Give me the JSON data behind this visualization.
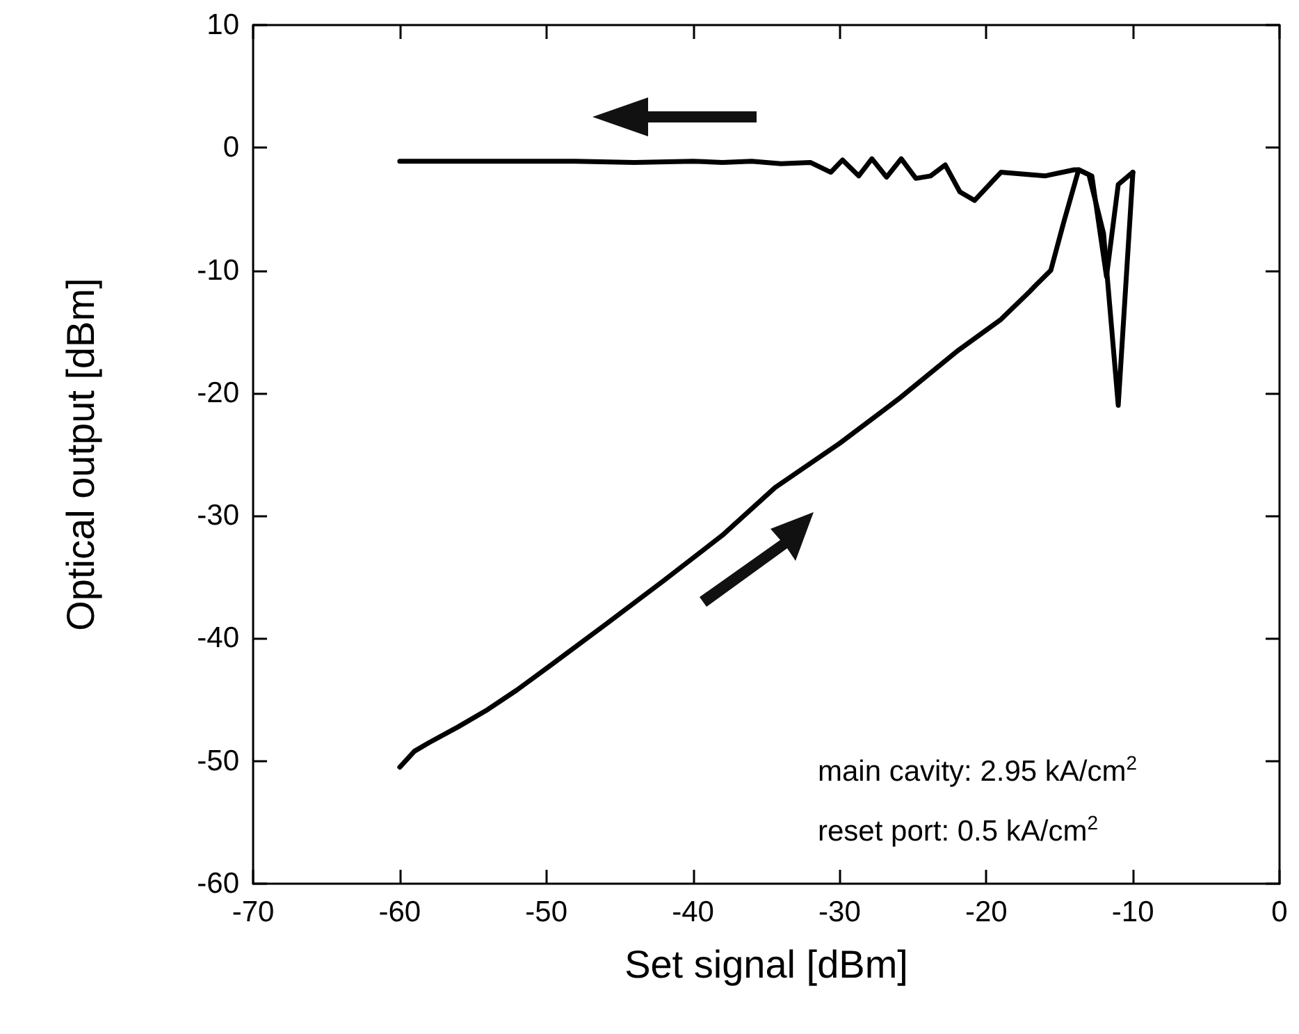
{
  "chart_data": {
    "type": "line",
    "xlabel": "Set signal [dBm]",
    "ylabel": "Optical output [dBm]",
    "xlim": [
      -70,
      0
    ],
    "xticks": [
      -70,
      -60,
      -50,
      -40,
      -30,
      -20,
      -10,
      0
    ],
    "ylim": [
      -60,
      10
    ],
    "yticks": [
      -60,
      -50,
      -40,
      -30,
      -20,
      -10,
      0,
      10
    ],
    "grid": false,
    "marker": "none",
    "line_style": "solid",
    "annotations": [
      "main cavity: 2.95 kA/cm$^{2}$",
      "reset port: 0.5 kA/cm$^{2}$"
    ],
    "series": [
      {
        "color": "#000000",
        "x": [
          -60,
          -59,
          -58,
          -56,
          -54,
          -52,
          -49.6,
          -46,
          -42,
          -38,
          -34.4,
          -30,
          -26,
          -22,
          -19,
          -17.1,
          -16.7,
          -15.6,
          -14.7,
          -13.7,
          -12.8,
          -11.8,
          -11,
          -10
        ],
        "values": [
          -50.5,
          -49.2,
          -48.5,
          -47.2,
          -45.8,
          -44.2,
          -42.1,
          -38.9,
          -35.3,
          -31.6,
          -27.7,
          -24.1,
          -20.5,
          -16.6,
          -14,
          -11.8,
          -11.3,
          -10,
          -6,
          -1.8,
          -2.3,
          -10.5,
          -3,
          -2
        ]
      },
      {
        "color": "#000000",
        "x": [
          -10,
          -11,
          -12,
          -13,
          -13.7,
          -14,
          -16,
          -19,
          -20.8,
          -21.8,
          -22.8,
          -23.8,
          -24.8,
          -25.8,
          -26.8,
          -27.8,
          -28.7,
          -29.8,
          -30.6,
          -32,
          -34,
          -36,
          -38,
          -40,
          -44,
          -48,
          -52,
          -56,
          -60
        ],
        "values": [
          -2,
          -21,
          -7,
          -2.2,
          -1.8,
          -1.8,
          -2.3,
          -2,
          -4.3,
          -3.6,
          -1.4,
          -2.3,
          -2.5,
          -0.9,
          -2.4,
          -0.9,
          -2.3,
          -1,
          -2,
          -1.2,
          -1.3,
          -1.1,
          -1.2,
          -1.1,
          -1.2,
          -1.1,
          -1.1,
          -1.1,
          -1.1
        ]
      }
    ]
  }
}
